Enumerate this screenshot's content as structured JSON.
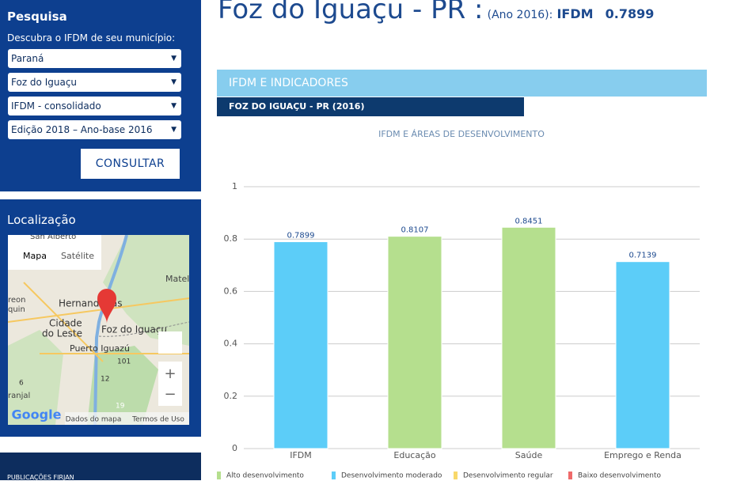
{
  "sidebar": {
    "search_title": "Pesquisa",
    "search_prompt": "Descubra o IFDM de seu município:",
    "selects": [
      "Paraná",
      "Foz do Iguaçu",
      "IFDM - consolidado",
      "Edição 2018 – Ano-base 2016"
    ],
    "button": "CONSULTAR",
    "location_title": "Localização",
    "map": {
      "tabs": [
        "Mapa",
        "Satélite"
      ],
      "labels": [
        "San Alberto",
        "Matelâ",
        "reon",
        "quin",
        "Hernandarias",
        "Cidade",
        "do Leste",
        "Foz do Iguaçu",
        "Puerto Iguazú",
        "101",
        "12",
        "6",
        "ranjal",
        "19"
      ],
      "brand": "Google",
      "footer": [
        "Dados do mapa",
        "Termos de Uso"
      ]
    },
    "bottom_text": "PUBLICAÇÕES FIRJAN"
  },
  "header": {
    "title": "Foz do Iguaçu - PR :",
    "year": "(Ano 2016):",
    "metric": "IFDM",
    "value": "0.7899"
  },
  "section": "IFDM E INDICADORES",
  "subsection": "FOZ DO IGUAÇU - PR (2016)",
  "chart_data": {
    "type": "bar",
    "title": "IFDM E ÁREAS DE DESENVOLVIMENTO",
    "categories": [
      "IFDM",
      "Educação",
      "Saúde",
      "Emprego e Renda"
    ],
    "values": [
      0.7899,
      0.8107,
      0.8451,
      0.7139
    ],
    "colors": [
      "#5ccdf8",
      "#b5df8e",
      "#b5df8e",
      "#5ccdf8"
    ],
    "ylim": [
      0,
      1
    ],
    "yticks": [
      0,
      0.2,
      0.4,
      0.6,
      0.8,
      1
    ],
    "grid": true,
    "legend": [
      {
        "name": "Alto desenvolvimento",
        "color": "#b5df8e"
      },
      {
        "name": "Desenvolvimento moderado",
        "color": "#5ccdf8"
      },
      {
        "name": "Desenvolvimento regular",
        "color": "#f8d86a"
      },
      {
        "name": "Baixo desenvolvimento",
        "color": "#ef6a6a"
      }
    ]
  }
}
